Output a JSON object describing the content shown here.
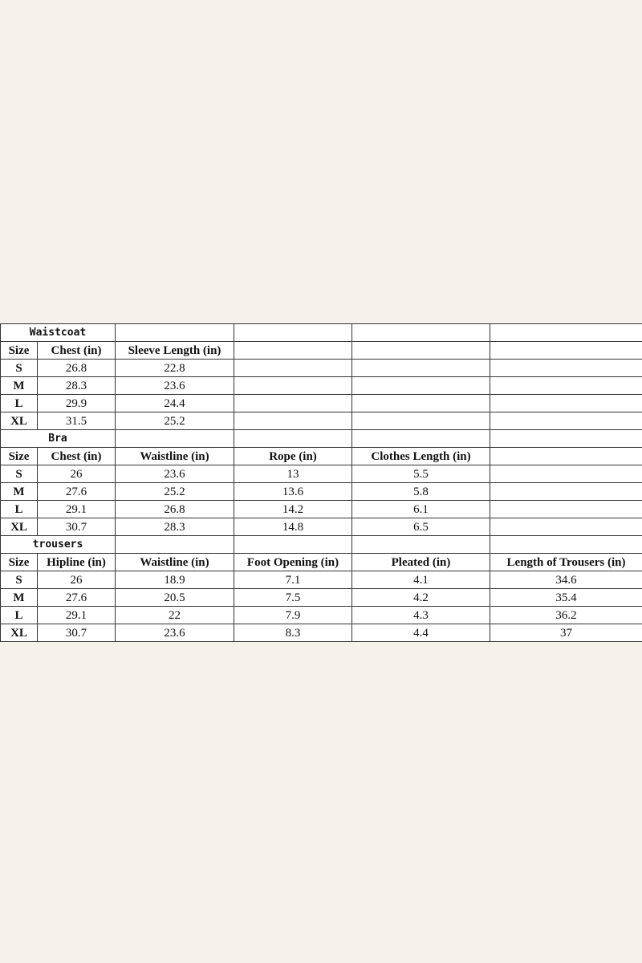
{
  "sections": [
    {
      "title": "Waistcoat",
      "headers": [
        "Size",
        "Chest (in)",
        "Sleeve Length (in)"
      ],
      "rows": [
        [
          "S",
          "26.8",
          "22.8"
        ],
        [
          "M",
          "28.3",
          "23.6"
        ],
        [
          "L",
          "29.9",
          "24.4"
        ],
        [
          "XL",
          "31.5",
          "25.2"
        ]
      ]
    },
    {
      "title": "Bra",
      "headers": [
        "Size",
        "Chest (in)",
        "Waistline (in)",
        "Rope (in)",
        "Clothes Length (in)"
      ],
      "rows": [
        [
          "S",
          "26",
          "23.6",
          "13",
          "5.5"
        ],
        [
          "M",
          "27.6",
          "25.2",
          "13.6",
          "5.8"
        ],
        [
          "L",
          "29.1",
          "26.8",
          "14.2",
          "6.1"
        ],
        [
          "XL",
          "30.7",
          "28.3",
          "14.8",
          "6.5"
        ]
      ]
    },
    {
      "title": "trousers",
      "headers": [
        "Size",
        "Hipline (in)",
        "Waistline (in)",
        "Foot Opening (in)",
        "Pleated (in)",
        "Length of Trousers (in)"
      ],
      "rows": [
        [
          "S",
          "26",
          "18.9",
          "7.1",
          "4.1",
          "34.6"
        ],
        [
          "M",
          "27.6",
          "20.5",
          "7.5",
          "4.2",
          "35.4"
        ],
        [
          "L",
          "29.1",
          "22",
          "7.9",
          "4.3",
          "36.2"
        ],
        [
          "XL",
          "30.7",
          "23.6",
          "8.3",
          "4.4",
          "37"
        ]
      ]
    }
  ]
}
